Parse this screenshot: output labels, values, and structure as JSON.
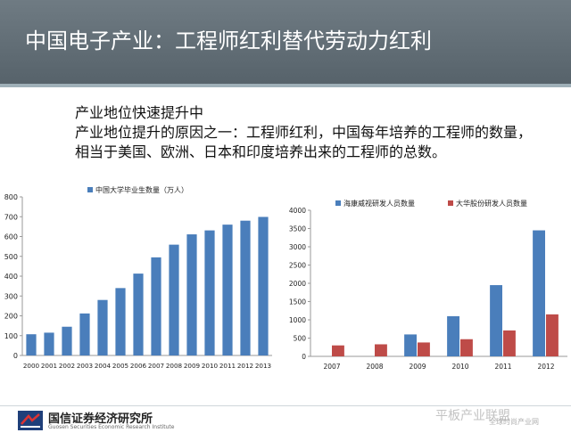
{
  "slide": {
    "title": "中国电子产业：工程师红利替代劳动力红利",
    "lines": [
      "产业地位快速提升中",
      "产业地位提升的原因之一：工程师红利，中国每年培养的工程师的数量，",
      "相当于美国、欧洲、日本和印度培养出来的工程师的总数。"
    ]
  },
  "footer": {
    "org": "国信证券经济研究所",
    "org_en": "Guosen Securities Economic Research Institute",
    "watermark": "平板产业联盟",
    "watermark_sub": "全球时尚产业网"
  },
  "colors": {
    "blue": "#4a7ebb",
    "red": "#be4b48",
    "title_bg": "#616d75"
  },
  "chart_data": [
    {
      "type": "bar",
      "categories": [
        "2000",
        "2001",
        "2002",
        "2003",
        "2004",
        "2005",
        "2006",
        "2007",
        "2008",
        "2009",
        "2010",
        "2011",
        "2012",
        "2013"
      ],
      "series": [
        {
          "name": "中国大学毕业生数量（万人）",
          "values": [
            107,
            115,
            145,
            212,
            280,
            340,
            413,
            495,
            559,
            611,
            631,
            660,
            680,
            699
          ]
        }
      ],
      "ylim": [
        0,
        800
      ],
      "yticks": [
        0,
        100,
        200,
        300,
        400,
        500,
        600,
        700,
        800
      ],
      "legend": "top"
    },
    {
      "type": "bar",
      "categories": [
        "2007",
        "2008",
        "2009",
        "2010",
        "2011",
        "2012"
      ],
      "series": [
        {
          "name": "海康威视研发人员数量",
          "values": [
            0,
            0,
            600,
            1100,
            1950,
            3450
          ]
        },
        {
          "name": "大华股份研发人员数量",
          "values": [
            300,
            330,
            380,
            470,
            710,
            1150
          ]
        }
      ],
      "ylim": [
        0,
        4000
      ],
      "yticks": [
        0,
        500,
        1000,
        1500,
        2000,
        2500,
        3000,
        3500,
        4000
      ],
      "legend": "top"
    }
  ]
}
